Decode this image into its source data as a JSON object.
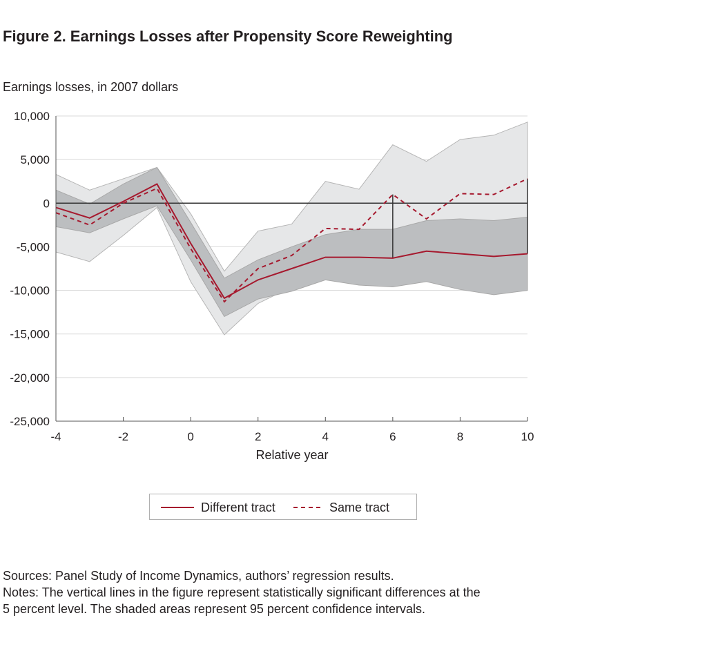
{
  "title": "Figure 2. Earnings Losses after Propensity Score Reweighting",
  "legend": {
    "different_label": "Different tract",
    "same_label": "Same tract"
  },
  "sources": "Sources: Panel Study of Income Dynamics, authors’ regression results.",
  "notes_line1": "Notes: The vertical lines in the figure represent statistically significant differences at the",
  "notes_line2": "5 percent level. The shaded areas represent 95 percent confidence intervals.",
  "colors": {
    "series": "#a6192e",
    "ci_light": "#e6e7e8",
    "ci_dark": "#bcbec0",
    "grid": "#d9d9d9",
    "axis": "#555555"
  },
  "chart_data": {
    "type": "line",
    "ylabel": "Earnings losses, in 2007 dollars",
    "xlabel": "Relative year",
    "xlim": [
      -4,
      10
    ],
    "ylim": [
      -25000,
      10000
    ],
    "xticks": [
      -4,
      -2,
      0,
      2,
      4,
      6,
      8,
      10
    ],
    "yticks": [
      10000,
      5000,
      0,
      -5000,
      -10000,
      -15000,
      -20000,
      -25000
    ],
    "ytick_labels": [
      "10,000",
      "5,000",
      "0",
      "-5,000",
      "-10,000",
      "-15,000",
      "-20,000",
      "-25,000"
    ],
    "x": [
      -4,
      -3,
      -2,
      -1,
      0,
      1,
      2,
      3,
      4,
      5,
      6,
      7,
      8,
      9,
      10
    ],
    "series": [
      {
        "name": "Different tract",
        "style": "solid",
        "values": [
          -500,
          -1700,
          200,
          2200,
          -4600,
          -10900,
          -8800,
          -7500,
          -6200,
          -6200,
          -6300,
          -5500,
          -5800,
          -6100,
          -5800
        ],
        "ci_lower": [
          -2700,
          -3400,
          -1800,
          -300,
          -6500,
          -13000,
          -11000,
          -10100,
          -8800,
          -9400,
          -9600,
          -9000,
          -9900,
          -10500,
          -10000
        ],
        "ci_upper": [
          1500,
          -100,
          2200,
          4100,
          -2200,
          -8600,
          -6500,
          -5000,
          -3600,
          -3000,
          -3000,
          -2000,
          -1800,
          -2000,
          -1600
        ]
      },
      {
        "name": "Same tract",
        "style": "dashed",
        "values": [
          -1100,
          -2500,
          0,
          1700,
          -5200,
          -11300,
          -7500,
          -6000,
          -2900,
          -3000,
          1000,
          -1800,
          1100,
          1000,
          2800
        ],
        "ci_lower": [
          -5600,
          -6700,
          -3700,
          -500,
          -9000,
          -15100,
          -11500,
          -9600,
          -7400,
          -8000,
          -4700,
          -8000,
          -5600,
          -5800,
          -3600
        ],
        "ci_upper": [
          3300,
          1500,
          2800,
          4100,
          -1200,
          -7800,
          -3200,
          -2400,
          2500,
          1600,
          6700,
          4800,
          7300,
          7800,
          9300
        ]
      }
    ],
    "significance_lines_x": [
      6,
      10
    ],
    "grid": true,
    "legend_position": "bottom"
  }
}
